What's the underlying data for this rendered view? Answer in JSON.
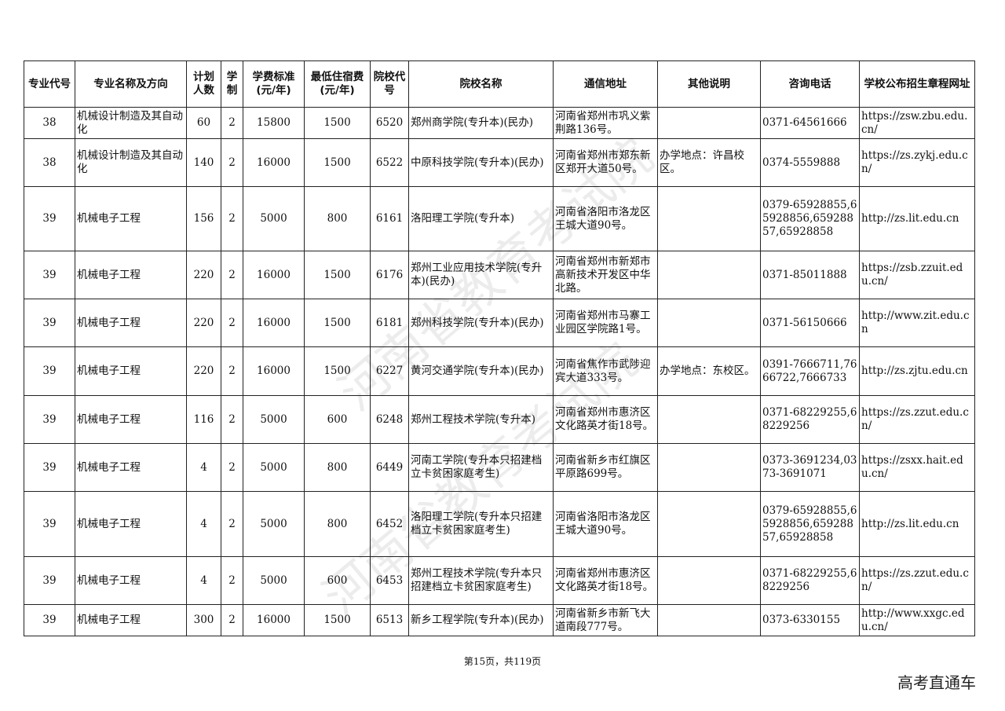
{
  "headers": [
    "专业代号",
    "专业名称及方向",
    "计划人数",
    "学制",
    "学费标准(元/年)",
    "最低住宿费(元/年)",
    "院校代号",
    "院校名称",
    "通信地址",
    "其他说明",
    "咨询电话",
    "学校公布招生章程网址"
  ],
  "rows": [
    [
      "38",
      "机械设计制造及其自动化",
      "60",
      "2",
      "15800",
      "1500",
      "6520",
      "郑州商学院(专升本)(民办)",
      "河南省郑州市巩义紫荆路136号。",
      "",
      "0371-64561666",
      "https://zsw.zbu.edu.cn/"
    ],
    [
      "38",
      "机械设计制造及其自动化",
      "140",
      "2",
      "16000",
      "1500",
      "6522",
      "中原科技学院(专升本)(民办)",
      "河南省郑州市郑东新区郑开大道50号。",
      "办学地点：许昌校区。",
      "0374-5559888",
      "https://zs.zykj.edu.cn/"
    ],
    [
      "39",
      "机械电子工程",
      "156",
      "2",
      "5000",
      "800",
      "6161",
      "洛阳理工学院(专升本)",
      "河南省洛阳市洛龙区王城大道90号。",
      "",
      "0379-65928855,65928856,65928857,65928858",
      "http://zs.lit.edu.cn"
    ],
    [
      "39",
      "机械电子工程",
      "220",
      "2",
      "16000",
      "1500",
      "6176",
      "郑州工业应用技术学院(专升本)(民办)",
      "河南省郑州市新郑市高新技术开发区中华北路。",
      "",
      "0371-85011888",
      "https://zsb.zzuit.edu.cn/"
    ],
    [
      "39",
      "机械电子工程",
      "220",
      "2",
      "16000",
      "1500",
      "6181",
      "郑州科技学院(专升本)(民办)",
      "河南省郑州市马寨工业园区学院路1号。",
      "",
      "0371-56150666",
      "http://www.zit.edu.cn"
    ],
    [
      "39",
      "机械电子工程",
      "220",
      "2",
      "16000",
      "1500",
      "6227",
      "黄河交通学院(专升本)(民办)",
      "河南省焦作市武陟迎宾大道333号。",
      "办学地点：东校区。",
      "0391-7666711,7666722,7666733",
      "http://zs.zjtu.edu.cn"
    ],
    [
      "39",
      "机械电子工程",
      "116",
      "2",
      "5000",
      "600",
      "6248",
      "郑州工程技术学院(专升本)",
      "河南省郑州市惠济区文化路英才街18号。",
      "",
      "0371-68229255,68229256",
      "https://zs.zzut.edu.cn/"
    ],
    [
      "39",
      "机械电子工程",
      "4",
      "2",
      "5000",
      "800",
      "6449",
      "河南工学院(专升本只招建档立卡贫困家庭考生)",
      "河南省新乡市红旗区平原路699号。",
      "",
      "0373-3691234,0373-3691071",
      "https://zsxx.hait.edu.cn/"
    ],
    [
      "39",
      "机械电子工程",
      "4",
      "2",
      "5000",
      "800",
      "6452",
      "洛阳理工学院(专升本只招建档立卡贫困家庭考生)",
      "河南省洛阳市洛龙区王城大道90号。",
      "",
      "0379-65928855,65928856,65928857,65928858",
      "http://zs.lit.edu.cn"
    ],
    [
      "39",
      "机械电子工程",
      "4",
      "2",
      "5000",
      "600",
      "6453",
      "郑州工程技术学院(专升本只招建档立卡贫困家庭考生)",
      "河南省郑州市惠济区文化路英才街18号。",
      "",
      "0371-68229255,68229256",
      "https://zs.zzut.edu.cn/"
    ],
    [
      "39",
      "机械电子工程",
      "300",
      "2",
      "16000",
      "1500",
      "6513",
      "新乡工程学院(专升本)(民办)",
      "河南省新乡市新飞大道南段777号。",
      "",
      "0373-6330155",
      "http://www.xxgc.edu.cn/"
    ]
  ],
  "footer": "第15页，共119页",
  "brand": "高考直通车",
  "watermark": "河南省教育考试院"
}
